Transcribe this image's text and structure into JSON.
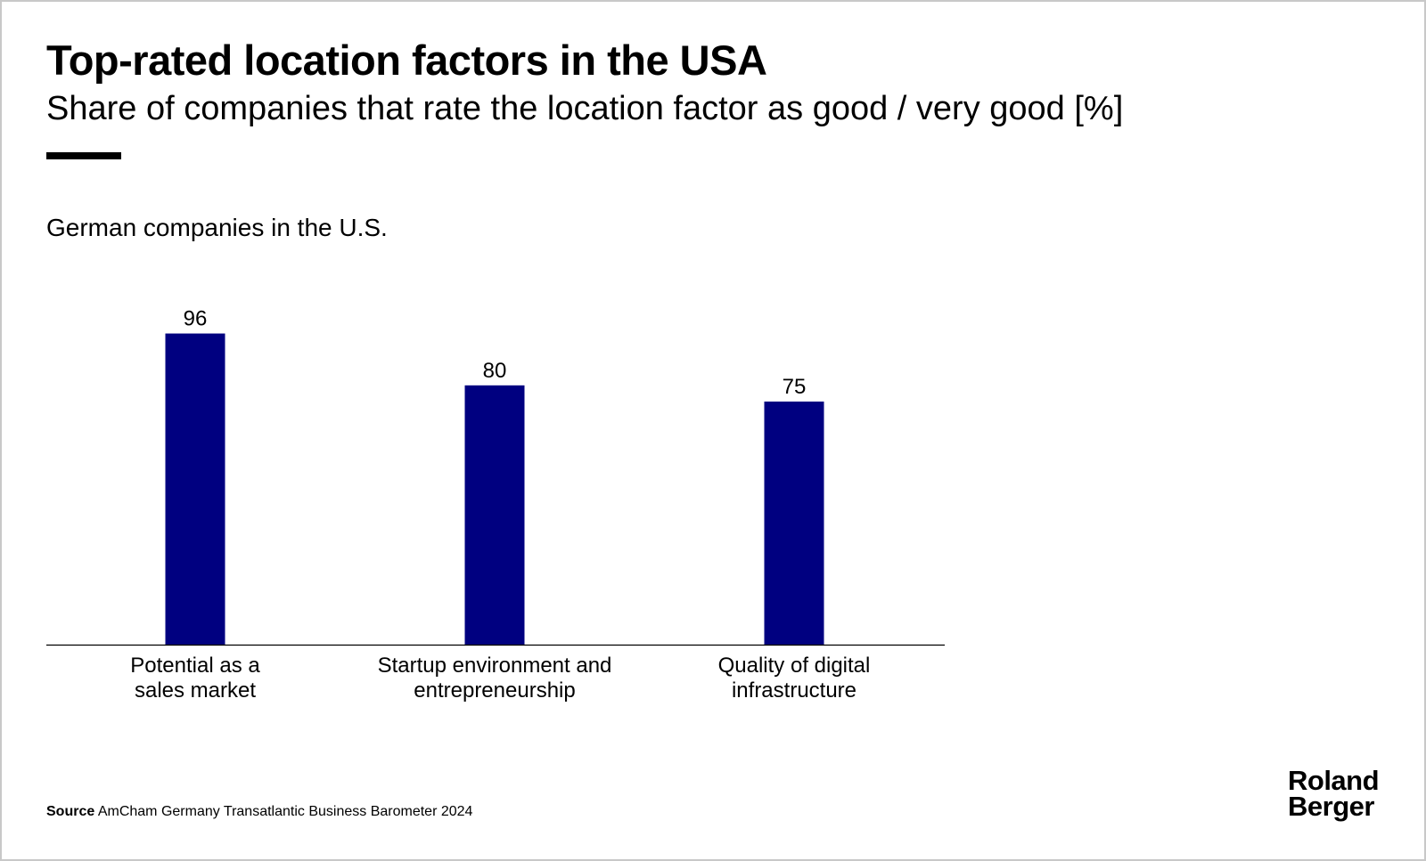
{
  "header": {
    "title": "Top-rated location factors in the USA",
    "subtitle": "Share of companies that rate the location factor as good / very good [%]"
  },
  "chart_heading": "German companies in the U.S.",
  "chart_data": {
    "type": "bar",
    "title": "German companies in the U.S.",
    "categories": [
      [
        "Potential as a",
        "sales market"
      ],
      [
        "Startup environment and",
        "entrepreneurship"
      ],
      [
        "Quality of digital",
        "infrastructure"
      ]
    ],
    "values": [
      96,
      80,
      75
    ],
    "data_labels": [
      "96",
      "80",
      "75"
    ],
    "ylim": [
      0,
      100
    ],
    "grid": false,
    "legend": "none",
    "bar_color": "#000080"
  },
  "source": {
    "label": "Source",
    "text": "AmCham Germany Transatlantic Business Barometer 2024"
  },
  "logo": {
    "line1": "Roland",
    "line2": "Berger"
  },
  "colors": {
    "bar": "#000080",
    "text": "#000000",
    "frame_border": "#c8c8c8"
  }
}
